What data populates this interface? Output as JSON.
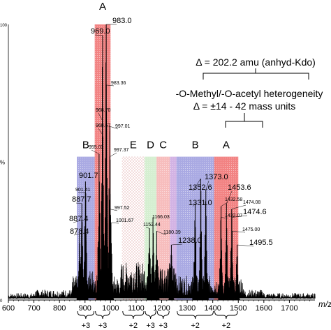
{
  "chart_data": {
    "type": "line",
    "title": "",
    "xlabel": "m/z",
    "ylabel": "%",
    "xlim": [
      600,
      1800
    ],
    "ylim": [
      0,
      100
    ],
    "x_ticks": [
      600,
      700,
      800,
      900,
      1000,
      1100,
      1200,
      1300,
      1400,
      1500,
      1600,
      1700
    ],
    "y_ticks": [
      {
        "value": 100,
        "label": "100"
      },
      {
        "value": 50,
        "label": "%"
      },
      {
        "value": 0,
        "label": "0"
      }
    ],
    "regions": [
      {
        "label": "B",
        "start": 868,
        "end": 938,
        "top": 52,
        "color": "#8d8ed9",
        "pattern": "dots"
      },
      {
        "label": "A",
        "start": 938,
        "end": 1000,
        "top": 100,
        "color": "#ee5a5a",
        "pattern": "dots"
      },
      {
        "label": "E",
        "start": 1045,
        "end": 1133,
        "top": 52,
        "color": "#e3a6a6",
        "pattern": "cross"
      },
      {
        "label": "D",
        "start": 1133,
        "end": 1180,
        "top": 52,
        "color": "#c7e9c2",
        "pattern": "dots"
      },
      {
        "label": "C",
        "start": 1180,
        "end": 1232,
        "top": 52,
        "color": "#f4a7a7",
        "pattern": "dots"
      },
      {
        "label": "",
        "start": 1232,
        "end": 1258,
        "top": 52,
        "color": "#c49adb",
        "pattern": "dots"
      },
      {
        "label": "B",
        "start": 1258,
        "end": 1405,
        "top": 52,
        "color": "#8d8ed9",
        "pattern": "dots"
      },
      {
        "label": "A",
        "start": 1405,
        "end": 1500,
        "top": 52,
        "color": "#ee5a5a",
        "pattern": "dots"
      }
    ],
    "peaks": [
      {
        "x": 878.4,
        "y": 24,
        "label": "878.4",
        "size": "large"
      },
      {
        "x": 887.4,
        "y": 29,
        "label": "887.4",
        "size": "large"
      },
      {
        "x": 887.7,
        "y": 35,
        "label": "887.7",
        "size": "large"
      },
      {
        "x": 901.41,
        "y": 39,
        "label": "901.41",
        "size": "small"
      },
      {
        "x": 901.7,
        "y": 43,
        "label": "901.7",
        "size": "large"
      },
      {
        "x": 955.03,
        "y": 53,
        "label": "955.03",
        "size": "small"
      },
      {
        "x": 968.67,
        "y": 60,
        "label": "968.67",
        "size": "small"
      },
      {
        "x": 968.7,
        "y": 65,
        "label": "968.70",
        "size": "small"
      },
      {
        "x": 969.0,
        "y": 96,
        "label": "969.0",
        "size": "large"
      },
      {
        "x": 983.0,
        "y": 100,
        "label": "983.0",
        "size": "large"
      },
      {
        "x": 983.36,
        "y": 78,
        "label": "983.36",
        "size": "small"
      },
      {
        "x": 997.01,
        "y": 63,
        "label": "997.01",
        "size": "small"
      },
      {
        "x": 997.37,
        "y": 52,
        "label": "997.37",
        "size": "small"
      },
      {
        "x": 997.52,
        "y": 33,
        "label": "997.52",
        "size": "small"
      },
      {
        "x": 1001.67,
        "y": 28,
        "label": "1001.67",
        "size": "small"
      },
      {
        "x": 1152.44,
        "y": 26,
        "label": "1152.44",
        "size": "small"
      },
      {
        "x": 1166.03,
        "y": 30,
        "label": "1166.03",
        "size": "small"
      },
      {
        "x": 1180.39,
        "y": 25,
        "label": "1180.39",
        "size": "small"
      },
      {
        "x": 1238.0,
        "y": 20,
        "label": "1238.0",
        "size": "large"
      },
      {
        "x": 1331.0,
        "y": 35,
        "label": "1331.0",
        "size": "large"
      },
      {
        "x": 1352.6,
        "y": 44,
        "label": "1352.6",
        "size": "large"
      },
      {
        "x": 1373.0,
        "y": 40,
        "label": "1373.0",
        "size": "large"
      },
      {
        "x": 1432.07,
        "y": 30,
        "label": "1432.07",
        "size": "small"
      },
      {
        "x": 1432.58,
        "y": 34,
        "label": "1432.58",
        "size": "small"
      },
      {
        "x": 1453.6,
        "y": 35,
        "label": "1453.6",
        "size": "large"
      },
      {
        "x": 1474.08,
        "y": 33,
        "label": "1474.08",
        "size": "small"
      },
      {
        "x": 1474.6,
        "y": 30,
        "label": "1474.6",
        "size": "large"
      },
      {
        "x": 1475.0,
        "y": 25,
        "label": "1475.00",
        "size": "small"
      },
      {
        "x": 1495.5,
        "y": 20,
        "label": "1495.5",
        "size": "large"
      }
    ],
    "charge_groups": [
      {
        "start": 868,
        "end": 938,
        "label": "+3"
      },
      {
        "start": 938,
        "end": 1000,
        "label": "+3"
      },
      {
        "start": 1045,
        "end": 1133,
        "label": "+2"
      },
      {
        "start": 1133,
        "end": 1180,
        "label": "+3"
      },
      {
        "start": 1180,
        "end": 1232,
        "label": "+3"
      },
      {
        "start": 1258,
        "end": 1405,
        "label": "+2"
      },
      {
        "start": 1405,
        "end": 1500,
        "label": "+2"
      }
    ],
    "annotations": {
      "delta_anhyd": "Δ = 202.2 amu (anhyd-Kdo)",
      "heterogeneity": "-O-Methyl/-O-acetyl heterogeneity",
      "delta_mass": "Δ = ±14 - 42 mass units"
    }
  }
}
